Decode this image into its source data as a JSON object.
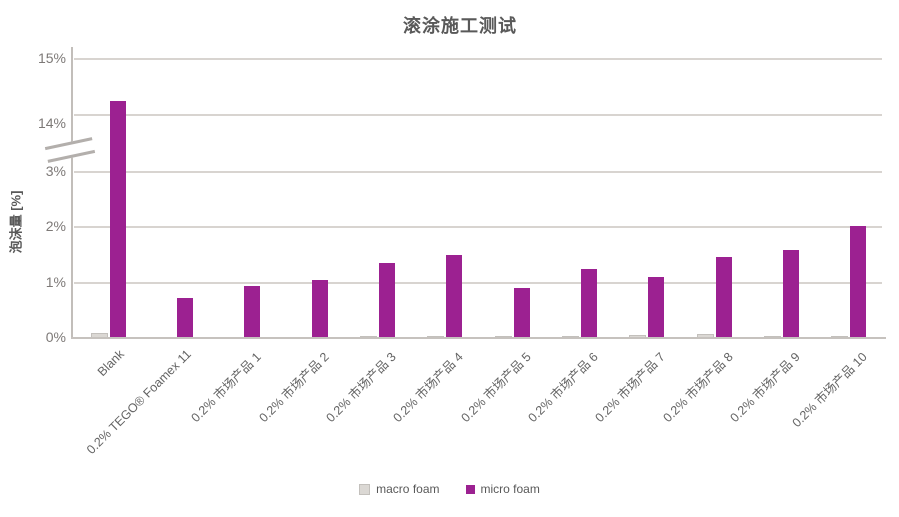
{
  "title": "滚涂施工测试",
  "y_axis_label": "泡沫量 [%]",
  "colors": {
    "micro_foam": "#9C2191",
    "macro_foam": "#DBD8D4",
    "macro_foam_border": "#C3C0BC",
    "gridline": "#D8D4D0",
    "axis_line": "#C2BEBA",
    "baseline": "#C6C2BE",
    "title_text": "#595959",
    "tick_text": "#7D7977"
  },
  "legend": {
    "position": "bottom",
    "items": [
      {
        "label": "macro foam"
      },
      {
        "label": "micro foam"
      }
    ]
  },
  "chart_data": {
    "type": "bar",
    "title": "滚涂施工测试",
    "xlabel": "",
    "ylabel": "泡沫量 [%]",
    "grid": true,
    "legend_position": "bottom",
    "axis_break": {
      "between": [
        3,
        14
      ]
    },
    "y_ticks_lower": [
      {
        "value": 0,
        "label": "0%"
      },
      {
        "value": 1,
        "label": "1%"
      },
      {
        "value": 2,
        "label": "2%"
      },
      {
        "value": 3,
        "label": "3%"
      }
    ],
    "y_ticks_upper": [
      {
        "value": 14,
        "label": "14%"
      },
      {
        "value": 15,
        "label": "15%"
      }
    ],
    "categories": [
      "Blank",
      "0.2% TEGO® Foamex 11",
      "0.2% 市场产品 1",
      "0.2% 市场产品 2",
      "0.2% 市场产品 3",
      "0.2% 市场产品 4",
      "0.2% 市场产品 5",
      "0.2% 市场产品 6",
      "0.2% 市场产品 7",
      "0.2% 市场产品 8",
      "0.2% 市场产品 9",
      "0.2% 市场产品 10"
    ],
    "series": [
      {
        "name": "macro foam",
        "color": "#DBD8D4",
        "values": [
          0.09,
          0.02,
          0.02,
          0.02,
          0.03,
          0.04,
          0.04,
          0.03,
          0.05,
          0.07,
          0.04,
          0.03
        ]
      },
      {
        "name": "micro foam",
        "color": "#9C2191",
        "values": [
          14.25,
          0.72,
          0.95,
          1.05,
          1.35,
          1.5,
          0.9,
          1.25,
          1.1,
          1.47,
          1.6,
          2.03
        ]
      }
    ]
  }
}
